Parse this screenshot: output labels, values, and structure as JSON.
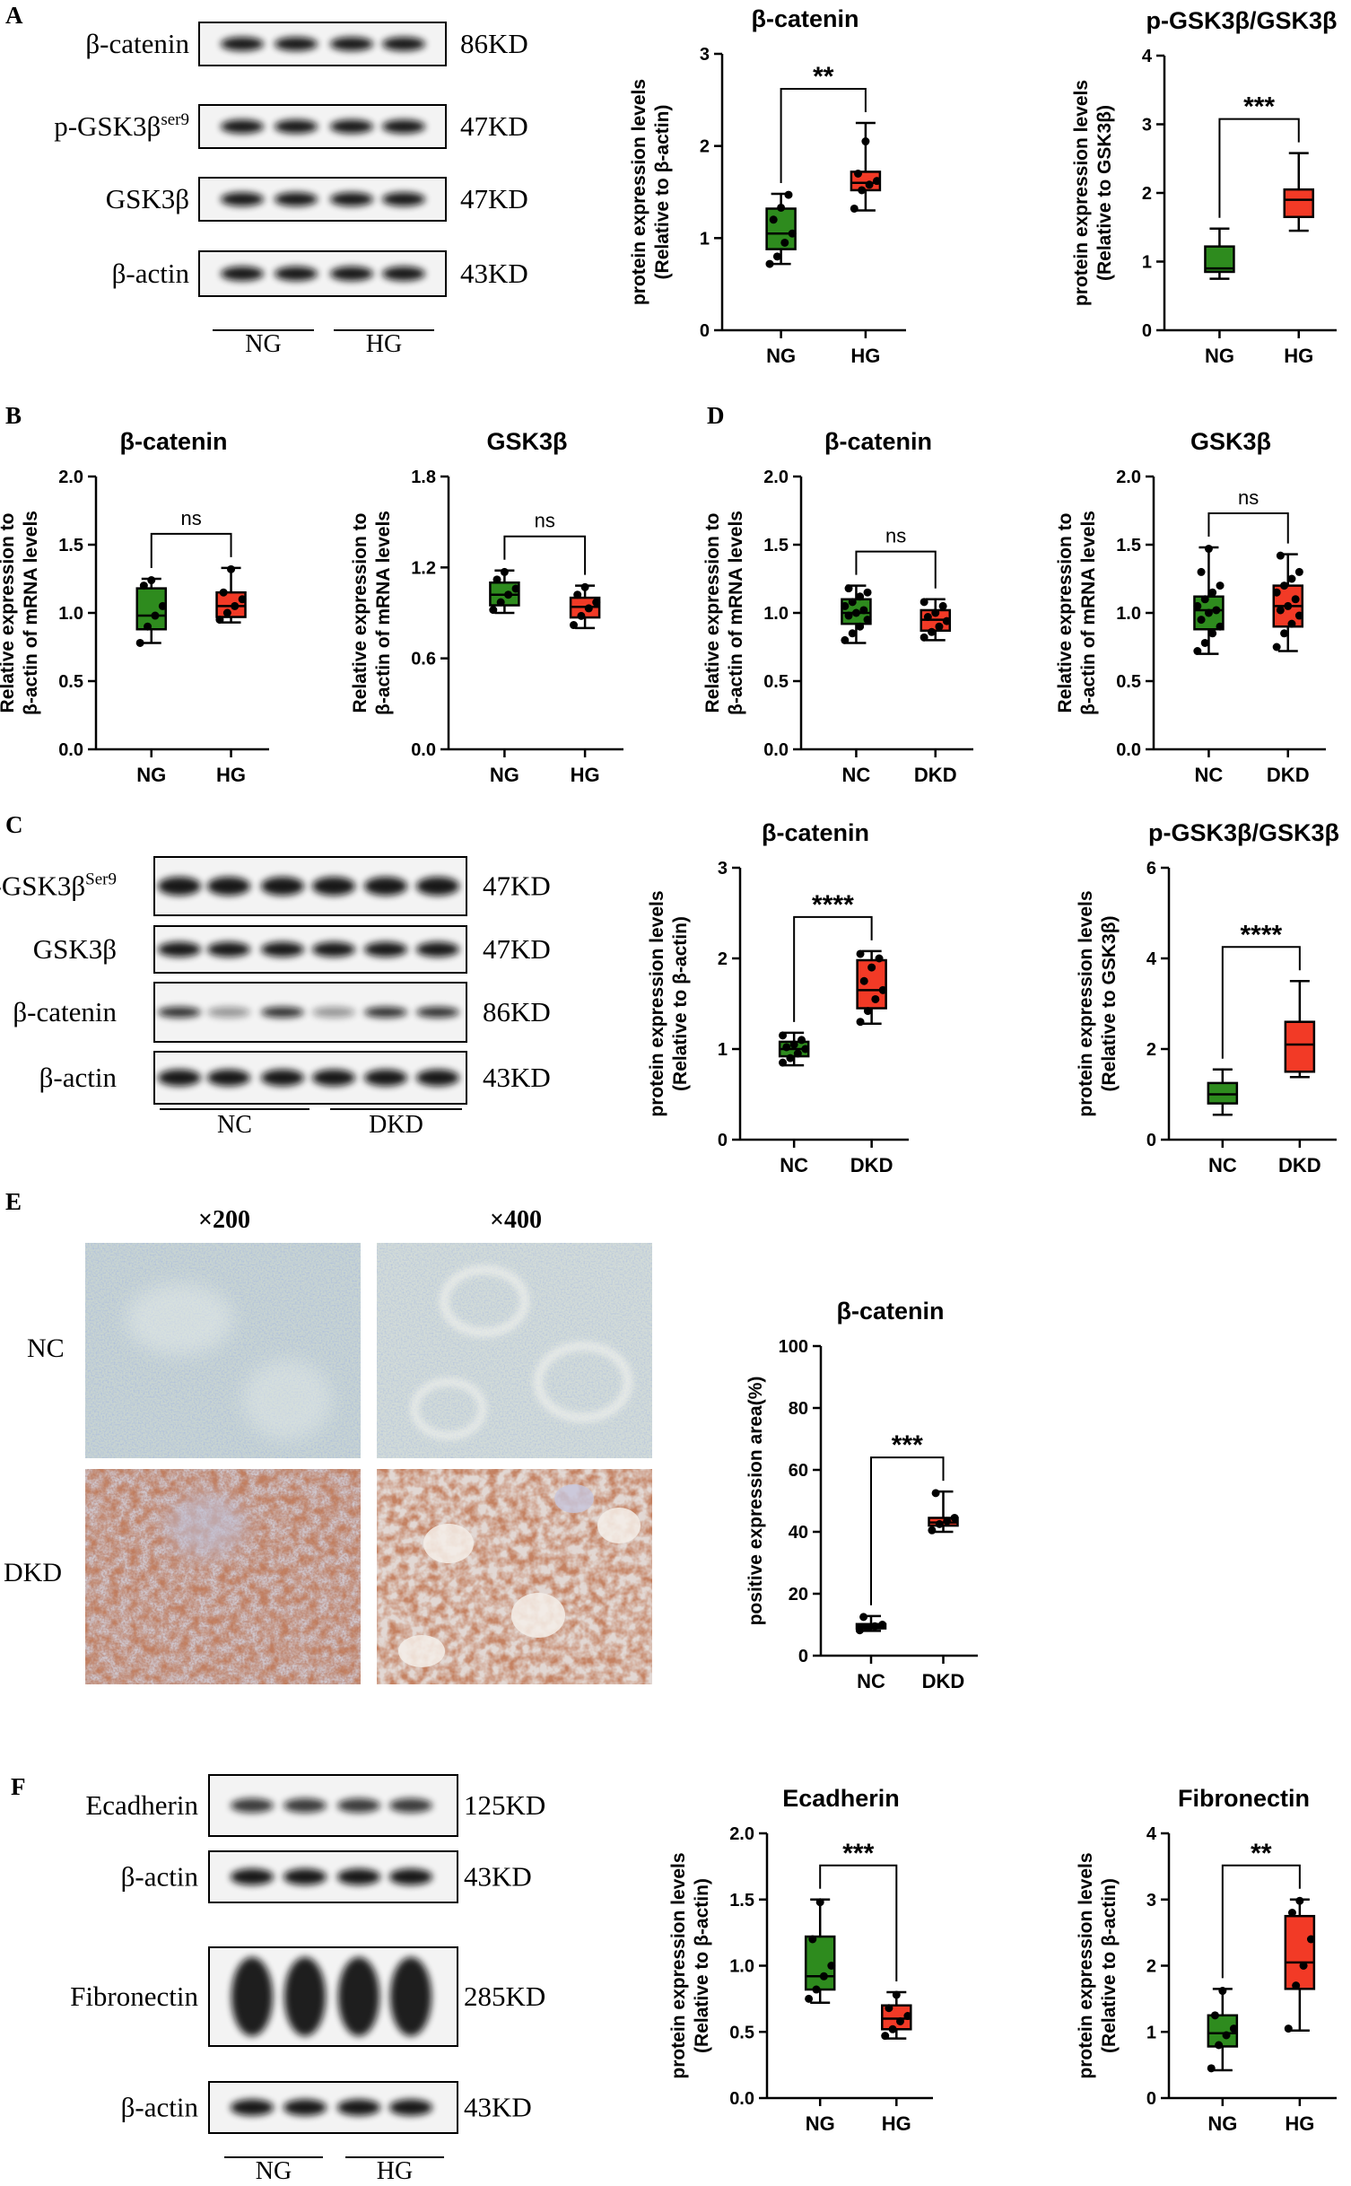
{
  "panels": {
    "A": {
      "letter": "A",
      "blot": {
        "rows": [
          {
            "label": "β-catenin",
            "sup": "",
            "kd": "86KD"
          },
          {
            "label": "p-GSK3β",
            "sup": "ser9",
            "kd": "47KD"
          },
          {
            "label": "GSK3β",
            "sup": "",
            "kd": "47KD"
          },
          {
            "label": "β-actin",
            "sup": "",
            "kd": "43KD"
          }
        ],
        "groups": [
          "NG",
          "HG"
        ]
      }
    },
    "B": {
      "letter": "B"
    },
    "C": {
      "letter": "C",
      "blot": {
        "rows": [
          {
            "label": "p-GSK3β",
            "sup": "Ser9",
            "kd": "47KD"
          },
          {
            "label": "GSK3β",
            "sup": "",
            "kd": "47KD"
          },
          {
            "label": "β-catenin",
            "sup": "",
            "kd": "86KD"
          },
          {
            "label": "β-actin",
            "sup": "",
            "kd": "43KD"
          }
        ],
        "groups": [
          "NC",
          "DKD"
        ]
      }
    },
    "D": {
      "letter": "D"
    },
    "E": {
      "letter": "E",
      "magnifications": [
        "×200",
        "×400"
      ],
      "row_labels": [
        "NC",
        "DKD"
      ]
    },
    "F": {
      "letter": "F",
      "blot": {
        "rows": [
          {
            "label": "Ecadherin",
            "sup": "",
            "kd": "125KD"
          },
          {
            "label": "β-actin",
            "sup": "",
            "kd": "43KD"
          },
          {
            "label": "Fibronectin",
            "sup": "",
            "kd": "285KD"
          },
          {
            "label": "β-actin",
            "sup": "",
            "kd": "43KD"
          }
        ],
        "groups": [
          "NG",
          "HG"
        ]
      }
    }
  },
  "colors": {
    "green": "#2e8b1e",
    "red": "#f23a26",
    "ink": "#000000"
  },
  "chart_data": [
    {
      "id": "A1",
      "type": "box",
      "title": "β-catenin",
      "ylabel": [
        "protein expression levels",
        "(Relative to β-actin)"
      ],
      "ylim": [
        0,
        3
      ],
      "yticks": [
        "0",
        "1",
        "2",
        "3"
      ],
      "categories": [
        "NG",
        "HG"
      ],
      "significance": "**",
      "series": [
        {
          "q": [
            0.72,
            0.88,
            1.05,
            1.32,
            1.48
          ],
          "points": [
            0.72,
            0.8,
            0.95,
            1.05,
            1.2,
            1.33,
            1.47
          ]
        },
        {
          "q": [
            1.3,
            1.52,
            1.6,
            1.72,
            2.25
          ],
          "points": [
            1.32,
            1.52,
            1.58,
            1.62,
            1.7,
            2.05
          ]
        }
      ]
    },
    {
      "id": "A2",
      "type": "box",
      "title": "p-GSK3β/GSK3β",
      "ylabel": [
        "protein expression levels",
        "(Relative to GSK3β)"
      ],
      "ylim": [
        0,
        4
      ],
      "yticks": [
        "0",
        "1",
        "2",
        "3",
        "4"
      ],
      "categories": [
        "NG",
        "HG"
      ],
      "significance": "***",
      "series": [
        {
          "q": [
            0.75,
            0.85,
            0.9,
            1.22,
            1.48
          ],
          "points": []
        },
        {
          "q": [
            1.45,
            1.65,
            1.9,
            2.05,
            2.58
          ],
          "points": []
        }
      ]
    },
    {
      "id": "B1",
      "type": "box",
      "title": "β-catenin",
      "ylabel": [
        "Relative expression to",
        "β-actin of mRNA levels"
      ],
      "ylim": [
        0,
        2
      ],
      "yticks": [
        "0.0",
        "0.5",
        "1.0",
        "1.5",
        "2.0"
      ],
      "categories": [
        "NG",
        "HG"
      ],
      "significance": "ns",
      "series": [
        {
          "q": [
            0.78,
            0.88,
            0.98,
            1.18,
            1.25
          ],
          "points": [
            0.78,
            0.9,
            0.98,
            1.05,
            1.2,
            1.24
          ]
        },
        {
          "q": [
            0.93,
            0.97,
            1.05,
            1.15,
            1.33
          ],
          "points": [
            0.95,
            1.0,
            1.05,
            1.1,
            1.15,
            1.32
          ]
        }
      ]
    },
    {
      "id": "B2",
      "type": "box",
      "title": "GSK3β",
      "ylabel": [
        "Relative expression to",
        "β-actin of mRNA levels"
      ],
      "ylim": [
        0,
        1.8
      ],
      "yticks": [
        "0.0",
        "0.6",
        "1.2",
        "1.8"
      ],
      "categories": [
        "NG",
        "HG"
      ],
      "significance": "ns",
      "series": [
        {
          "q": [
            0.9,
            0.95,
            1.02,
            1.1,
            1.18
          ],
          "points": [
            0.92,
            0.97,
            1.02,
            1.06,
            1.12,
            1.17
          ]
        },
        {
          "q": [
            0.8,
            0.87,
            0.94,
            1.0,
            1.08
          ],
          "points": [
            0.82,
            0.88,
            0.93,
            0.97,
            1.02,
            1.07
          ]
        }
      ]
    },
    {
      "id": "D1",
      "type": "box",
      "title": "β-catenin",
      "ylabel": [
        "Relative expression to",
        "β-actin of mRNA levels"
      ],
      "ylim": [
        0,
        2
      ],
      "yticks": [
        "0.0",
        "0.5",
        "1.0",
        "1.5",
        "2.0"
      ],
      "categories": [
        "NC",
        "DKD"
      ],
      "significance": "ns",
      "series": [
        {
          "q": [
            0.78,
            0.92,
            1.0,
            1.1,
            1.2
          ],
          "points": [
            0.8,
            0.85,
            0.9,
            0.95,
            0.98,
            1.0,
            1.02,
            1.05,
            1.08,
            1.12,
            1.15,
            1.18
          ]
        },
        {
          "q": [
            0.8,
            0.87,
            0.95,
            1.02,
            1.1
          ],
          "points": [
            0.82,
            0.86,
            0.9,
            0.94,
            0.97,
            1.0,
            1.05,
            1.08
          ]
        }
      ]
    },
    {
      "id": "D2",
      "type": "box",
      "title": "GSK3β",
      "ylabel": [
        "Relative expression to",
        "β-actin of mRNA levels"
      ],
      "ylim": [
        0,
        2
      ],
      "yticks": [
        "0.0",
        "0.5",
        "1.0",
        "1.5",
        "2.0"
      ],
      "categories": [
        "NC",
        "DKD"
      ],
      "significance": "ns",
      "series": [
        {
          "q": [
            0.7,
            0.88,
            1.02,
            1.12,
            1.48
          ],
          "points": [
            0.72,
            0.78,
            0.85,
            0.9,
            0.95,
            1.0,
            1.02,
            1.05,
            1.1,
            1.15,
            1.2,
            1.3,
            1.47
          ]
        },
        {
          "q": [
            0.72,
            0.9,
            1.05,
            1.2,
            1.43
          ],
          "points": [
            0.75,
            0.85,
            0.92,
            0.98,
            1.02,
            1.05,
            1.1,
            1.15,
            1.2,
            1.25,
            1.3,
            1.42
          ]
        }
      ]
    },
    {
      "id": "C1",
      "type": "box",
      "title": "β-catenin",
      "ylabel": [
        "protein expression levels",
        "(Relative to β-actin)"
      ],
      "ylim": [
        0,
        3
      ],
      "yticks": [
        "0",
        "1",
        "2",
        "3"
      ],
      "categories": [
        "NC",
        "DKD"
      ],
      "significance": "****",
      "series": [
        {
          "q": [
            0.82,
            0.92,
            1.0,
            1.08,
            1.18
          ],
          "points": [
            0.85,
            0.9,
            0.95,
            1.0,
            1.02,
            1.05,
            1.1,
            1.15
          ]
        },
        {
          "q": [
            1.28,
            1.45,
            1.65,
            1.98,
            2.08
          ],
          "points": [
            1.3,
            1.42,
            1.55,
            1.65,
            1.75,
            1.9,
            2.0,
            2.05
          ]
        }
      ]
    },
    {
      "id": "C2",
      "type": "box",
      "title": "p-GSK3β/GSK3β",
      "ylabel": [
        "protein expression levels",
        "(Relative to GSK3β)"
      ],
      "ylim": [
        0,
        6
      ],
      "yticks": [
        "0",
        "2",
        "4",
        "6"
      ],
      "categories": [
        "NC",
        "DKD"
      ],
      "significance": "****",
      "series": [
        {
          "q": [
            0.55,
            0.8,
            1.0,
            1.25,
            1.55
          ],
          "points": []
        },
        {
          "q": [
            1.38,
            1.5,
            2.1,
            2.6,
            3.5
          ],
          "points": []
        }
      ]
    },
    {
      "id": "E1",
      "type": "box",
      "title": "β-catenin",
      "ylabel": [
        "positive expression area(%)"
      ],
      "ylim": [
        0,
        100
      ],
      "yticks": [
        "0",
        "20",
        "40",
        "60",
        "80",
        "100"
      ],
      "categories": [
        "NC",
        "DKD"
      ],
      "significance": "***",
      "series": [
        {
          "q": [
            8.0,
            8.8,
            9.5,
            10.2,
            12.8
          ],
          "points": [
            8.2,
            9.0,
            9.5,
            10.0,
            12.5
          ]
        },
        {
          "q": [
            40.0,
            42.0,
            43.0,
            44.5,
            53.0
          ],
          "points": [
            40.5,
            42.5,
            43.5,
            44.5,
            52.5
          ]
        }
      ]
    },
    {
      "id": "F1",
      "type": "box",
      "title": "Ecadherin",
      "ylabel": [
        "protein expression levels",
        "(Relative to β-actin)"
      ],
      "ylim": [
        0,
        2
      ],
      "yticks": [
        "0.0",
        "0.5",
        "1.0",
        "1.5",
        "2.0"
      ],
      "categories": [
        "NG",
        "HG"
      ],
      "significance": "***",
      "series": [
        {
          "q": [
            0.72,
            0.82,
            0.92,
            1.22,
            1.5
          ],
          "points": [
            0.75,
            0.82,
            0.92,
            1.0,
            1.2,
            1.48
          ]
        },
        {
          "q": [
            0.45,
            0.52,
            0.6,
            0.7,
            0.8
          ],
          "points": [
            0.47,
            0.52,
            0.58,
            0.62,
            0.68,
            0.78
          ]
        }
      ]
    },
    {
      "id": "F2",
      "type": "box",
      "title": "Fibronectin",
      "ylabel": [
        "protein expression levels",
        "(Relative to β-actin)"
      ],
      "ylim": [
        0,
        4
      ],
      "yticks": [
        "0",
        "1",
        "2",
        "3",
        "4"
      ],
      "categories": [
        "NG",
        "HG"
      ],
      "significance": "**",
      "series": [
        {
          "q": [
            0.42,
            0.78,
            0.98,
            1.25,
            1.65
          ],
          "points": [
            0.45,
            0.8,
            0.95,
            1.05,
            1.25,
            1.62
          ]
        },
        {
          "q": [
            1.02,
            1.65,
            2.05,
            2.75,
            3.0
          ],
          "points": [
            1.05,
            1.7,
            2.0,
            2.4,
            2.8,
            2.98
          ]
        }
      ]
    }
  ]
}
